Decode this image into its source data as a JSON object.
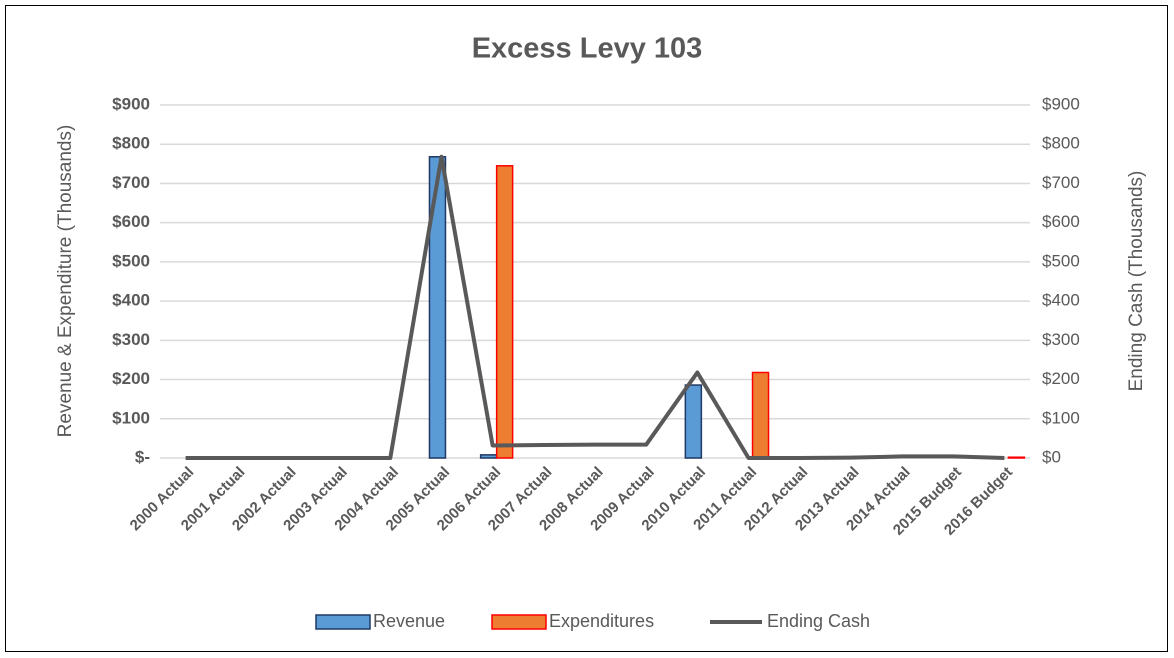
{
  "chart_data": {
    "type": "bar",
    "title": "Excess Levy 103",
    "y_label": "Revenue & Expenditure (Thousands)",
    "y2_label": "Ending Cash (Thousands)",
    "categories": [
      "2000 Actual",
      "2001 Actual",
      "2002 Actual",
      "2003 Actual",
      "2004 Actual",
      "2005 Actual",
      "2006 Actual",
      "2007 Actual",
      "2008 Actual",
      "2009 Actual",
      "2010 Actual",
      "2011 Actual",
      "2012 Actual",
      "2013 Actual",
      "2014 Actual",
      "2015 Budget",
      "2016 Budget"
    ],
    "series": [
      {
        "name": "Revenue",
        "type": "bar",
        "color": "#5b9bd5",
        "edge_color": "#1f3864",
        "values": [
          0,
          0,
          0,
          0,
          0,
          768,
          8,
          0,
          0,
          0,
          186,
          0,
          0,
          0,
          0,
          0,
          0
        ]
      },
      {
        "name": "Expenditures",
        "type": "bar",
        "color": "#ed7d31",
        "edge_color": "#ff0000",
        "values": [
          0,
          0,
          0,
          0,
          0,
          0,
          745,
          0,
          0,
          0,
          0,
          218,
          0,
          0,
          0,
          0,
          2
        ]
      },
      {
        "name": "Ending Cash",
        "type": "line",
        "axis": "y2",
        "color": "#595959",
        "values": [
          0,
          0,
          0,
          0,
          0,
          768,
          32,
          33,
          34,
          34,
          218,
          0,
          0,
          1,
          4,
          4,
          0
        ]
      }
    ],
    "ylim": [
      0,
      900
    ],
    "yticks": [
      {
        "value": 0,
        "label": "$-"
      },
      {
        "value": 100,
        "label": "$100"
      },
      {
        "value": 200,
        "label": "$200"
      },
      {
        "value": 300,
        "label": "$300"
      },
      {
        "value": 400,
        "label": "$400"
      },
      {
        "value": 500,
        "label": "$500"
      },
      {
        "value": 600,
        "label": "$600"
      },
      {
        "value": 700,
        "label": "$700"
      },
      {
        "value": 800,
        "label": "$800"
      },
      {
        "value": 900,
        "label": "$900"
      }
    ],
    "y2lim": [
      0,
      900
    ],
    "y2ticks": [
      {
        "value": 0,
        "label": "$0"
      },
      {
        "value": 100,
        "label": "$100"
      },
      {
        "value": 200,
        "label": "$200"
      },
      {
        "value": 300,
        "label": "$300"
      },
      {
        "value": 400,
        "label": "$400"
      },
      {
        "value": 500,
        "label": "$500"
      },
      {
        "value": 600,
        "label": "$600"
      },
      {
        "value": 700,
        "label": "$700"
      },
      {
        "value": 800,
        "label": "$800"
      },
      {
        "value": 900,
        "label": "$900"
      }
    ],
    "grid": true,
    "legend": "bottom"
  }
}
